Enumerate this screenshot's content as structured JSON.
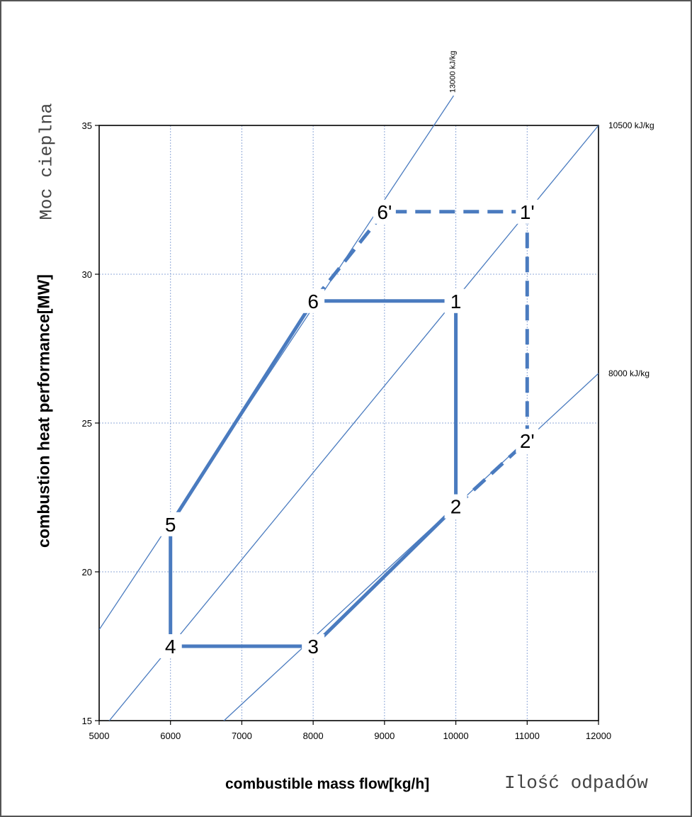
{
  "chart_data": {
    "type": "line",
    "title": "",
    "xlabel": "combustible mass flow[kg/h]",
    "xlabel_alt": "Ilość odpadów",
    "ylabel": "combustion heat performance[MW]",
    "ylabel_alt": "Moc cieplna",
    "xlim": [
      5000,
      12000
    ],
    "ylim": [
      15,
      35
    ],
    "x_ticks": [
      5000,
      6000,
      7000,
      8000,
      9000,
      10000,
      11000,
      12000
    ],
    "x_tick_labels": [
      "5000",
      "6000",
      "7000",
      "8000",
      "9000",
      "10000",
      "11000",
      "12000"
    ],
    "y_ticks": [
      15,
      20,
      25,
      30,
      35
    ],
    "y_tick_labels": [
      "15",
      "20",
      "25",
      "30",
      "35"
    ],
    "grid": true,
    "colors": {
      "diagram": "#4a7bbf",
      "grid": "#8fa8d8"
    },
    "calorific_lines": [
      {
        "label": "13000 kJ/kg",
        "value_kj_per_kg": 13000
      },
      {
        "label": "10500 kJ/kg",
        "value_kj_per_kg": 10500
      },
      {
        "label": "8000 kJ/kg",
        "value_kj_per_kg": 8000
      }
    ],
    "points": [
      {
        "label": "1",
        "x": 10000,
        "y": 29.1
      },
      {
        "label": "2",
        "x": 10000,
        "y": 22.2
      },
      {
        "label": "3",
        "x": 8000,
        "y": 17.5
      },
      {
        "label": "4",
        "x": 6000,
        "y": 17.5
      },
      {
        "label": "5",
        "x": 6000,
        "y": 21.6
      },
      {
        "label": "6",
        "x": 8000,
        "y": 29.1
      },
      {
        "label": "1'",
        "x": 11000,
        "y": 32.1
      },
      {
        "label": "2'",
        "x": 11000,
        "y": 24.4
      },
      {
        "label": "6'",
        "x": 9000,
        "y": 32.1
      }
    ],
    "solid_path": [
      "1",
      "2",
      "3",
      "4",
      "5",
      "6",
      "1"
    ],
    "dashed_path": [
      "2",
      "2'",
      "1'",
      "6'",
      "6"
    ]
  }
}
